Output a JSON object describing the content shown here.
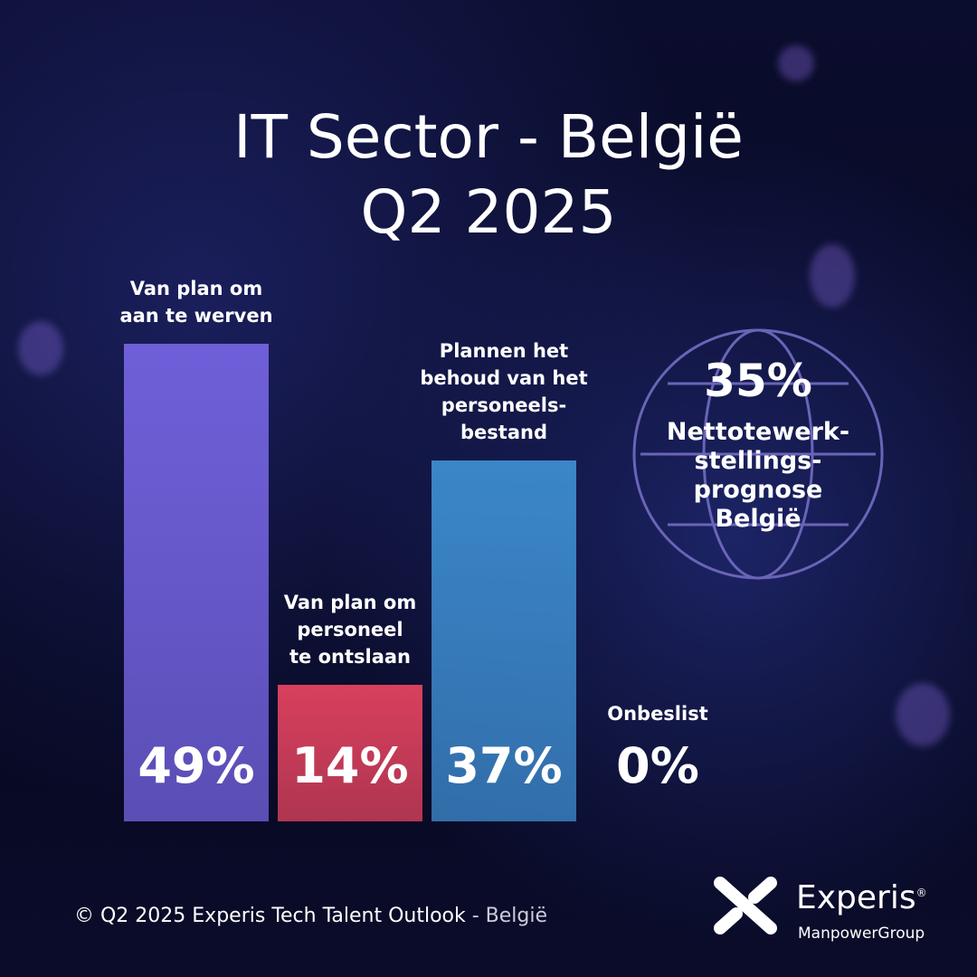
{
  "chart_data": {
    "type": "bar",
    "title": "IT Sector - België",
    "subtitle": "Q2 2025",
    "categories": [
      "Van plan om\naan te werven",
      "Van plan om\npersoneel\nte ontslaan",
      "Plannen het\nbehoud van het\npersoneels-\nbestand",
      "Onbeslist"
    ],
    "values": [
      49,
      14,
      37,
      0
    ],
    "value_labels": [
      "49%",
      "14%",
      "37%",
      "0%"
    ],
    "colors": [
      "#6f5fd8",
      "#d8405c",
      "#3b86c8",
      "#ffffff"
    ],
    "annotation": {
      "value": 35,
      "label": "35%",
      "text": "Nettotewerk-\nstellings-\nprognose\nBelgië"
    }
  },
  "footer": {
    "source": "© Q2 2025  Experis Tech Talent Outlook",
    "region": "- België"
  },
  "logo": {
    "brand": "Experis",
    "mark": "®",
    "parent": "ManpowerGroup"
  }
}
